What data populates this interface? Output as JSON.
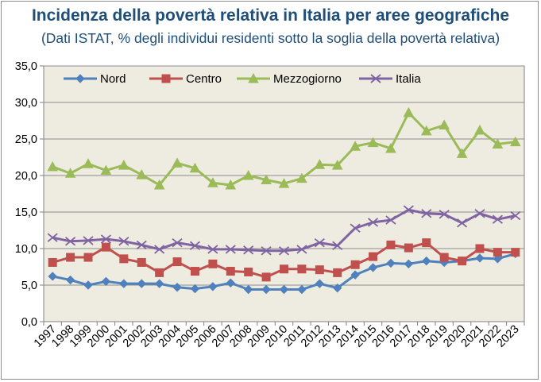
{
  "chart_data": {
    "type": "line",
    "title": "Incidenza della povertà relativa in Italia per aree geografiche",
    "subtitle": "(Dati ISTAT, % degli individui residenti sotto la soglia della povertà relativa)",
    "ylim": [
      0,
      35
    ],
    "yticks": [
      "0,0",
      "5,0",
      "10,0",
      "15,0",
      "20,0",
      "25,0",
      "30,0",
      "35,0"
    ],
    "categories": [
      "1997",
      "1998",
      "1999",
      "2000",
      "2001",
      "2002",
      "2003",
      "2004",
      "2005",
      "2006",
      "2007",
      "2008",
      "2009",
      "2010",
      "2011",
      "2012",
      "2013",
      "2014",
      "2015",
      "2016",
      "2017",
      "2018",
      "2019",
      "2020",
      "2021",
      "2022",
      "2023"
    ],
    "grid": true,
    "legend_position": "top",
    "background": "#eeece1",
    "series": [
      {
        "name": "Nord",
        "color": "#4f81bd",
        "marker": "diamond",
        "values": [
          6.2,
          5.7,
          5.0,
          5.5,
          5.2,
          5.2,
          5.2,
          4.7,
          4.5,
          4.8,
          5.3,
          4.4,
          4.4,
          4.4,
          4.4,
          5.2,
          4.6,
          6.4,
          7.4,
          8.0,
          7.9,
          8.3,
          8.1,
          8.3,
          8.7,
          8.6,
          9.3
        ]
      },
      {
        "name": "Centro",
        "color": "#c0504d",
        "marker": "square",
        "values": [
          8.1,
          8.8,
          8.8,
          10.2,
          8.6,
          8.1,
          6.7,
          8.2,
          6.9,
          7.9,
          6.9,
          6.8,
          6.1,
          7.2,
          7.2,
          7.1,
          6.7,
          7.8,
          8.9,
          10.5,
          10.1,
          10.8,
          8.8,
          8.3,
          10.0,
          9.5,
          9.5
        ]
      },
      {
        "name": "Mezzogiorno",
        "color": "#9bbb59",
        "marker": "triangle",
        "values": [
          21.2,
          20.3,
          21.6,
          20.7,
          21.4,
          20.1,
          18.7,
          21.7,
          21.0,
          19.0,
          18.7,
          20.0,
          19.4,
          18.9,
          19.6,
          21.5,
          21.4,
          24.0,
          24.5,
          23.7,
          28.6,
          26.1,
          26.9,
          23.0,
          26.2,
          24.3,
          24.6
        ]
      },
      {
        "name": "Italia",
        "color": "#8064a2",
        "marker": "x",
        "values": [
          11.5,
          11.0,
          11.1,
          11.3,
          11.0,
          10.5,
          9.9,
          10.8,
          10.4,
          9.9,
          9.9,
          9.8,
          9.7,
          9.7,
          9.9,
          10.8,
          10.4,
          12.8,
          13.6,
          13.9,
          15.3,
          14.8,
          14.7,
          13.5,
          14.8,
          14.0,
          14.5
        ]
      }
    ]
  }
}
